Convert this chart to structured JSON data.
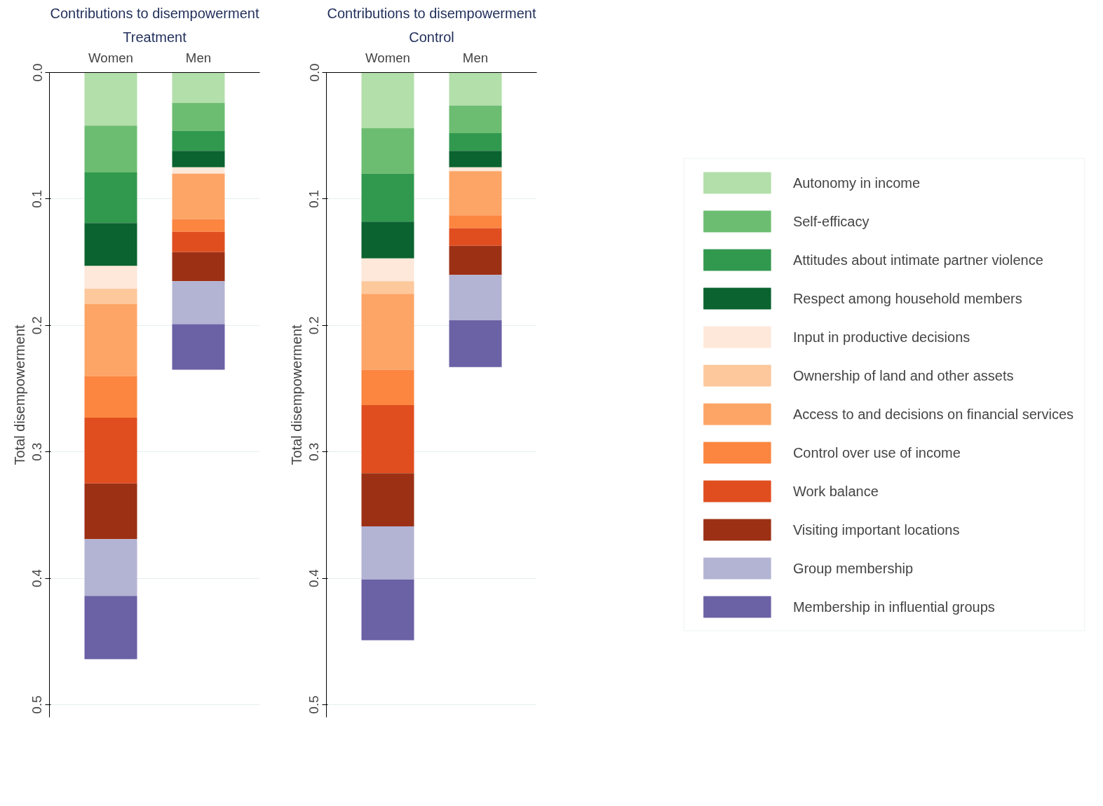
{
  "chart_data": [
    {
      "type": "bar",
      "stacked": true,
      "title": "Contributions to disempowerment",
      "subtitle": "Treatment",
      "ylabel": "Total disempowerment",
      "categories": [
        "Women",
        "Men"
      ],
      "ylim": [
        0.51,
        0
      ],
      "yticks": [
        {
          "value": 0,
          "label": "0.0"
        },
        0.1,
        0.2,
        0.3,
        0.4,
        0.5
      ],
      "grid": "y",
      "legend": "right",
      "series": [
        {
          "name": "Autonomy in income",
          "color": "#b3dfaa",
          "values": [
            0.042,
            0.024
          ]
        },
        {
          "name": "Self-efficacy",
          "color": "#6cbd71",
          "values": [
            0.037,
            0.022
          ]
        },
        {
          "name": "Attitudes about intimate partner violence",
          "color": "#31994e",
          "values": [
            0.04,
            0.016
          ]
        },
        {
          "name": "Respect among household members",
          "color": "#0b632f",
          "values": [
            0.034,
            0.013
          ]
        },
        {
          "name": "Input in productive decisions",
          "color": "#fde8da",
          "values": [
            0.018,
            0.005
          ]
        },
        {
          "name": "Ownership of land and other assets",
          "color": "#fdc89b",
          "values": [
            0.012,
            0
          ]
        },
        {
          "name": "Access to and decisions on financial services",
          "color": "#fda566",
          "values": [
            0.057,
            0.036
          ]
        },
        {
          "name": "Control over use of income",
          "color": "#fc8540",
          "values": [
            0.033,
            0.01
          ]
        },
        {
          "name": "Work balance",
          "color": "#e04e1f",
          "values": [
            0.052,
            0.016
          ]
        },
        {
          "name": "Visiting important locations",
          "color": "#9c3015",
          "values": [
            0.044,
            0.023
          ]
        },
        {
          "name": "Group membership",
          "color": "#b3b3d3",
          "values": [
            0.045,
            0.034
          ]
        },
        {
          "name": "Membership in influential groups",
          "color": "#6b61a5",
          "values": [
            0.05,
            0.036
          ]
        }
      ]
    },
    {
      "type": "bar",
      "stacked": true,
      "title": "Contributions to disempowerment",
      "subtitle": "Control",
      "ylabel": "Total disempowerment",
      "categories": [
        "Women",
        "Men"
      ],
      "ylim": [
        0.51,
        0
      ],
      "yticks": [
        {
          "value": 0,
          "label": "0.0"
        },
        0.1,
        0.2,
        0.3,
        0.4,
        0.5
      ],
      "grid": "y",
      "legend": "right",
      "series": [
        {
          "name": "Autonomy in income",
          "color": "#b3dfaa",
          "values": [
            0.044,
            0.026
          ]
        },
        {
          "name": "Self-efficacy",
          "color": "#6cbd71",
          "values": [
            0.036,
            0.022
          ]
        },
        {
          "name": "Attitudes about intimate partner violence",
          "color": "#31994e",
          "values": [
            0.038,
            0.014
          ]
        },
        {
          "name": "Respect among household members",
          "color": "#0b632f",
          "values": [
            0.029,
            0.013
          ]
        },
        {
          "name": "Input in productive decisions",
          "color": "#fde8da",
          "values": [
            0.018,
            0.003
          ]
        },
        {
          "name": "Ownership of land and other assets",
          "color": "#fdc89b",
          "values": [
            0.01,
            0
          ]
        },
        {
          "name": "Access to and decisions on financial services",
          "color": "#fda566",
          "values": [
            0.06,
            0.035
          ]
        },
        {
          "name": "Control over use of income",
          "color": "#fc8540",
          "values": [
            0.028,
            0.01
          ]
        },
        {
          "name": "Work balance",
          "color": "#e04e1f",
          "values": [
            0.054,
            0.014
          ]
        },
        {
          "name": "Visiting important locations",
          "color": "#9c3015",
          "values": [
            0.042,
            0.023
          ]
        },
        {
          "name": "Group membership",
          "color": "#b3b3d3",
          "values": [
            0.042,
            0.036
          ]
        },
        {
          "name": "Membership in influential groups",
          "color": "#6b61a5",
          "values": [
            0.048,
            0.037
          ]
        }
      ]
    }
  ]
}
